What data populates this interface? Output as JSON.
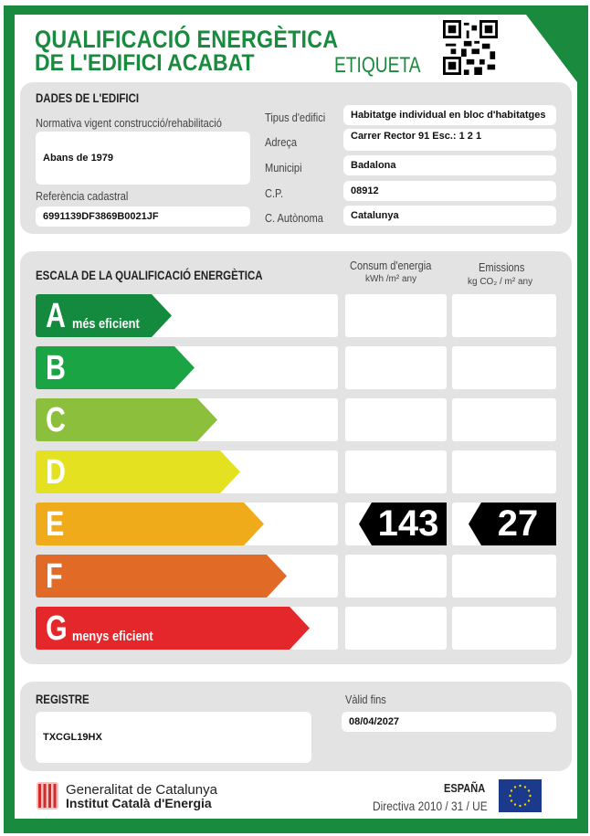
{
  "header": {
    "title_line1": "QUALIFICACIÓ ENERGÈTICA",
    "title_line2": "DE L'EDIFICI ACABAT",
    "label": "ETIQUETA",
    "qr_icon": "qr-code-icon"
  },
  "building": {
    "heading": "DADES DE L'EDIFICI",
    "regulation_label": "Normativa vigent construcció/rehabilitació",
    "regulation_value": "Abans de 1979",
    "cadastral_label": "Referència cadastral",
    "cadastral_value": "6991139DF3869B0021JF",
    "fields": [
      {
        "label": "Tipus d'edifici",
        "value": "Habitatge individual en bloc d'habitatges"
      },
      {
        "label": "Adreça",
        "value": "Carrer Rector 91 Esc.: 1 2 1"
      },
      {
        "label": "Municipi",
        "value": "Badalona"
      },
      {
        "label": "C.P.",
        "value": "08912"
      },
      {
        "label": "C. Autònoma",
        "value": "Catalunya"
      }
    ]
  },
  "scale": {
    "heading": "ESCALA DE LA QUALIFICACIÓ ENERGÈTICA",
    "consumption_header": "Consum d'energia",
    "consumption_unit": "kWh /m² any",
    "emissions_header": "Emissions",
    "emissions_unit": "kg CO₂ / m² any",
    "classes": [
      {
        "letter": "A",
        "sub": "més eficient",
        "color": "#138a3e"
      },
      {
        "letter": "B",
        "sub": "",
        "color": "#1ba443"
      },
      {
        "letter": "C",
        "sub": "",
        "color": "#8cbf3b"
      },
      {
        "letter": "D",
        "sub": "",
        "color": "#e4e220"
      },
      {
        "letter": "E",
        "sub": "",
        "color": "#f0ab1b"
      },
      {
        "letter": "F",
        "sub": "",
        "color": "#e06a26"
      },
      {
        "letter": "G",
        "sub": "menys eficient",
        "color": "#e3272a"
      }
    ],
    "rated_class": "E",
    "consumption_value": "143",
    "emissions_value": "27"
  },
  "registry": {
    "heading": "REGISTRE",
    "value": "TXCGL19HX",
    "valid_label": "Vàlid fins",
    "valid_value": "08/04/2027"
  },
  "footer": {
    "org1": "Generalitat de Catalunya",
    "org2": "Institut Català d'Energia",
    "country": "ESPAÑA",
    "directive": "Directiva 2010 / 31 / UE"
  }
}
